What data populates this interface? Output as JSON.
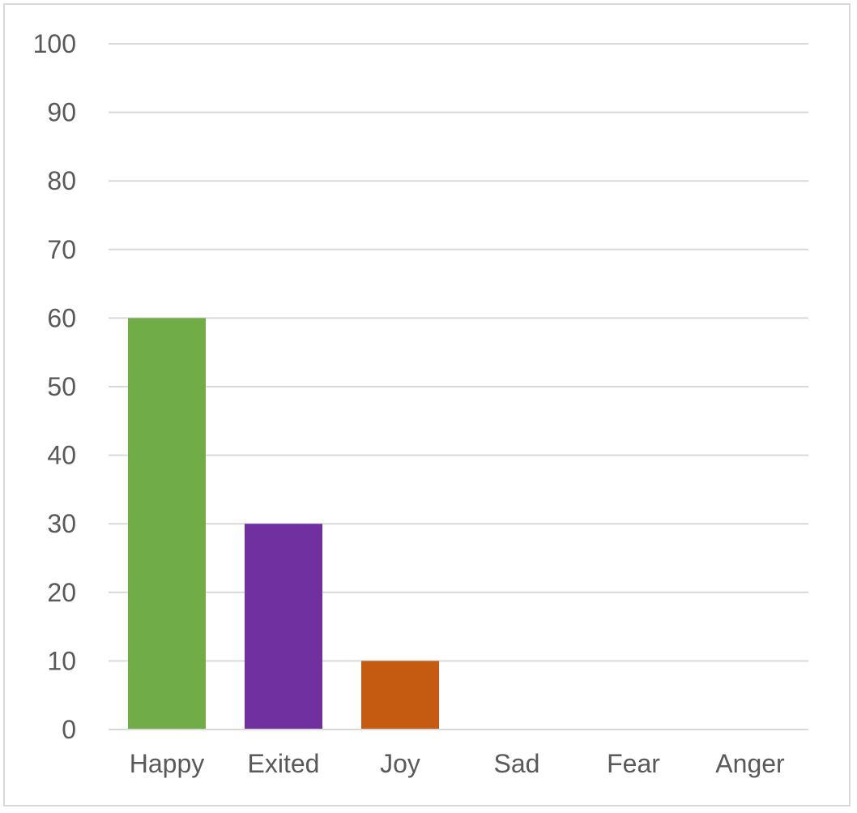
{
  "chart_data": {
    "type": "bar",
    "title": "",
    "xlabel": "",
    "ylabel": "",
    "categories": [
      "Happy",
      "Exited",
      "Joy",
      "Sad",
      "Fear",
      "Anger"
    ],
    "values": [
      60,
      30,
      10,
      0,
      0,
      0
    ],
    "colors": [
      "#70ad47",
      "#7030a0",
      "#c55a11",
      "#4472c4",
      "#4472c4",
      "#4472c4"
    ],
    "ylim": [
      0,
      100
    ],
    "yticks": [
      0,
      10,
      20,
      30,
      40,
      50,
      60,
      70,
      80,
      90,
      100
    ],
    "grid": true,
    "legend": "none"
  }
}
